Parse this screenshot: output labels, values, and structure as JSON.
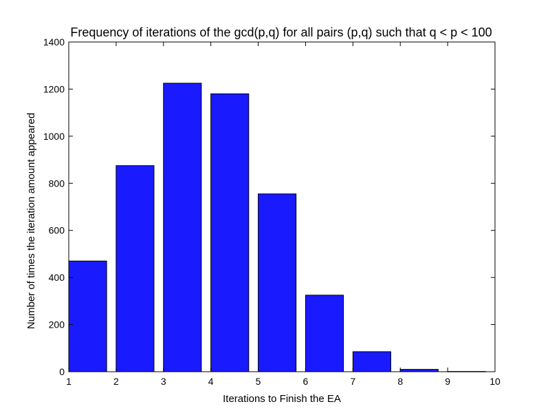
{
  "chart_data": {
    "type": "bar",
    "title": "Frequency of iterations of the gcd(p,q) for all pairs (p,q) such that q < p < 100",
    "xlabel": "Iterations to Finish the EA",
    "ylabel": "Number of times the iteration amount appeared",
    "xlim": [
      1,
      10
    ],
    "ylim": [
      0,
      1400
    ],
    "xticks": [
      1,
      2,
      3,
      4,
      5,
      6,
      7,
      8,
      9,
      10
    ],
    "yticks": [
      0,
      200,
      400,
      600,
      800,
      1000,
      1200,
      1400
    ],
    "bins": [
      {
        "start": 1.0,
        "end": 1.8,
        "value": 470
      },
      {
        "start": 2.0,
        "end": 2.8,
        "value": 875
      },
      {
        "start": 3.0,
        "end": 3.8,
        "value": 1225
      },
      {
        "start": 4.0,
        "end": 4.8,
        "value": 1180
      },
      {
        "start": 5.0,
        "end": 5.8,
        "value": 755
      },
      {
        "start": 6.0,
        "end": 6.8,
        "value": 325
      },
      {
        "start": 7.0,
        "end": 7.8,
        "value": 85
      },
      {
        "start": 8.0,
        "end": 8.8,
        "value": 10
      },
      {
        "start": 9.0,
        "end": 9.8,
        "value": 1
      }
    ],
    "bar_color": "#1a1aff",
    "edge_color": "#000000",
    "grid": false
  }
}
